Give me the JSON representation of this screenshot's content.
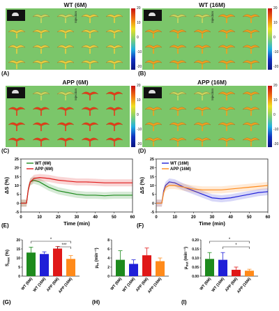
{
  "maps": [
    {
      "key": "A",
      "title": "WT (6M)",
      "label": "(A)",
      "injection": "Injection",
      "cbar": [
        "20",
        "10",
        "0",
        "-10",
        "-20"
      ],
      "intensity": 0.25
    },
    {
      "key": "B",
      "title": "WT (16M)",
      "label": "(B)",
      "injection": "Injection",
      "cbar": [
        "20",
        "10",
        "0",
        "-10",
        "-20"
      ],
      "intensity": 0.55
    },
    {
      "key": "C",
      "title": "APP (6M)",
      "label": "(C)",
      "injection": "Injection",
      "cbar": [
        "20",
        "10",
        "0",
        "-10",
        "-20"
      ],
      "intensity": 0.9
    },
    {
      "key": "D",
      "title": "APP (16M)",
      "label": "(D)",
      "injection": "Injection",
      "cbar": [
        "20",
        "10",
        "0",
        "-10",
        "-20"
      ],
      "intensity": 0.5
    }
  ],
  "timecourse": [
    {
      "label": "(E)",
      "ylabel": "ΔS (%)",
      "xlabel": "Time (min)",
      "xticks": [
        "0",
        "10",
        "20",
        "30",
        "40",
        "50",
        "60"
      ],
      "yticks": [
        "25",
        "20",
        "15",
        "10",
        "5",
        "0",
        "-5"
      ],
      "legend": [
        "WT (6M)",
        "APP (6M)"
      ],
      "colors": [
        "#1d8a1d",
        "#e01818"
      ]
    },
    {
      "label": "(F)",
      "ylabel": "ΔS (%)",
      "xlabel": "Time (min)",
      "xticks": [
        "0",
        "10",
        "20",
        "30",
        "40",
        "50",
        "60"
      ],
      "yticks": [
        "25",
        "20",
        "15",
        "10",
        "5",
        "0",
        "-5"
      ],
      "legend": [
        "WT (16M)",
        "APP (16M)"
      ],
      "colors": [
        "#1f1fd8",
        "#ff8a1a"
      ]
    }
  ],
  "chart_data": [
    {
      "type": "line",
      "title": "",
      "xlabel": "Time (min)",
      "ylabel": "ΔS (%)",
      "xlim": [
        0,
        60
      ],
      "ylim": [
        -5,
        25
      ],
      "series": [
        {
          "name": "WT (6M)",
          "x": [
            0,
            3,
            4,
            5,
            7,
            10,
            15,
            20,
            25,
            30,
            35,
            40,
            45,
            50,
            55,
            60
          ],
          "y": [
            0,
            0,
            8,
            12,
            13,
            12,
            9,
            7,
            6,
            5,
            4.5,
            4.5,
            4.2,
            4.5,
            4.5,
            4.5
          ]
        },
        {
          "name": "APP (6M)",
          "x": [
            0,
            3,
            4,
            5,
            7,
            10,
            15,
            20,
            25,
            30,
            35,
            40,
            45,
            50,
            55,
            60
          ],
          "y": [
            0,
            0,
            8,
            12,
            14,
            14.5,
            14,
            13,
            12.5,
            12,
            12,
            11.8,
            11.5,
            11.5,
            11.5,
            11.5
          ]
        }
      ]
    },
    {
      "type": "line",
      "title": "",
      "xlabel": "Time (min)",
      "ylabel": "ΔS (%)",
      "xlim": [
        0,
        60
      ],
      "ylim": [
        -5,
        25
      ],
      "series": [
        {
          "name": "WT (16M)",
          "x": [
            0,
            3,
            4,
            5,
            7,
            10,
            15,
            20,
            25,
            30,
            35,
            40,
            45,
            50,
            55,
            60
          ],
          "y": [
            0,
            0,
            7,
            10,
            12,
            11.5,
            9,
            7,
            5,
            3,
            2.5,
            3,
            4,
            5,
            6,
            6.5
          ]
        },
        {
          "name": "APP (16M)",
          "x": [
            0,
            3,
            4,
            5,
            7,
            10,
            15,
            20,
            25,
            30,
            35,
            40,
            45,
            50,
            55,
            60
          ],
          "y": [
            0,
            0,
            6,
            9,
            10,
            10,
            9,
            8,
            7.5,
            7.5,
            7.5,
            8,
            8.5,
            9,
            9.5,
            10
          ]
        }
      ]
    },
    {
      "type": "bar",
      "title": "",
      "ylabel": "S_max (%)",
      "ylim": [
        0,
        20
      ],
      "categories": [
        "WT (6M)",
        "WT (16M)",
        "APP (6M)",
        "APP (16M)"
      ],
      "values": [
        13,
        12.2,
        15.2,
        9.5
      ],
      "errors": [
        3,
        1.2,
        1.2,
        1.8
      ],
      "sig": [
        "*",
        "***"
      ]
    },
    {
      "type": "bar",
      "title": "",
      "ylabel": "μ_in (min⁻¹)",
      "ylim": [
        0,
        8
      ],
      "categories": [
        "WT (6M)",
        "WT (16M)",
        "APP (6M)",
        "APP (16M)"
      ],
      "values": [
        3.6,
        2.7,
        4.6,
        3.3
      ],
      "errors": [
        2.0,
        0.9,
        1.6,
        0.7
      ],
      "sig": []
    },
    {
      "type": "bar",
      "title": "",
      "ylabel": "μ_out (min⁻¹)",
      "ylim": [
        0,
        0.2
      ],
      "categories": [
        "WT (6M)",
        "WT (16M)",
        "APP (6M)",
        "APP (16M)"
      ],
      "values": [
        0.095,
        0.09,
        0.035,
        0.03
      ],
      "errors": [
        0.035,
        0.04,
        0.015,
        0.008
      ],
      "sig": [
        "*",
        "*"
      ]
    }
  ],
  "bars": [
    {
      "label": "(G)",
      "ylabel": "S",
      "ysub": "max",
      "yunit": " (%)",
      "yticks": [
        "0",
        "5",
        "10",
        "15",
        "20"
      ],
      "ymax": 20
    },
    {
      "label": "(H)",
      "ylabel": "μ",
      "ysub": "in",
      "yunit": " (min⁻¹)",
      "yticks": [
        "0",
        "2",
        "4",
        "6",
        "8"
      ],
      "ymax": 8
    },
    {
      "label": "(I)",
      "ylabel": "μ",
      "ysub": "out",
      "yunit": " (min⁻¹)",
      "yticks": [
        "0.00",
        "0.05",
        "0.10",
        "0.15",
        "0.20"
      ],
      "ymax": 0.2
    }
  ],
  "bar_colors": [
    "#1d8a1d",
    "#1f1fd8",
    "#e01818",
    "#ff8a1a"
  ]
}
